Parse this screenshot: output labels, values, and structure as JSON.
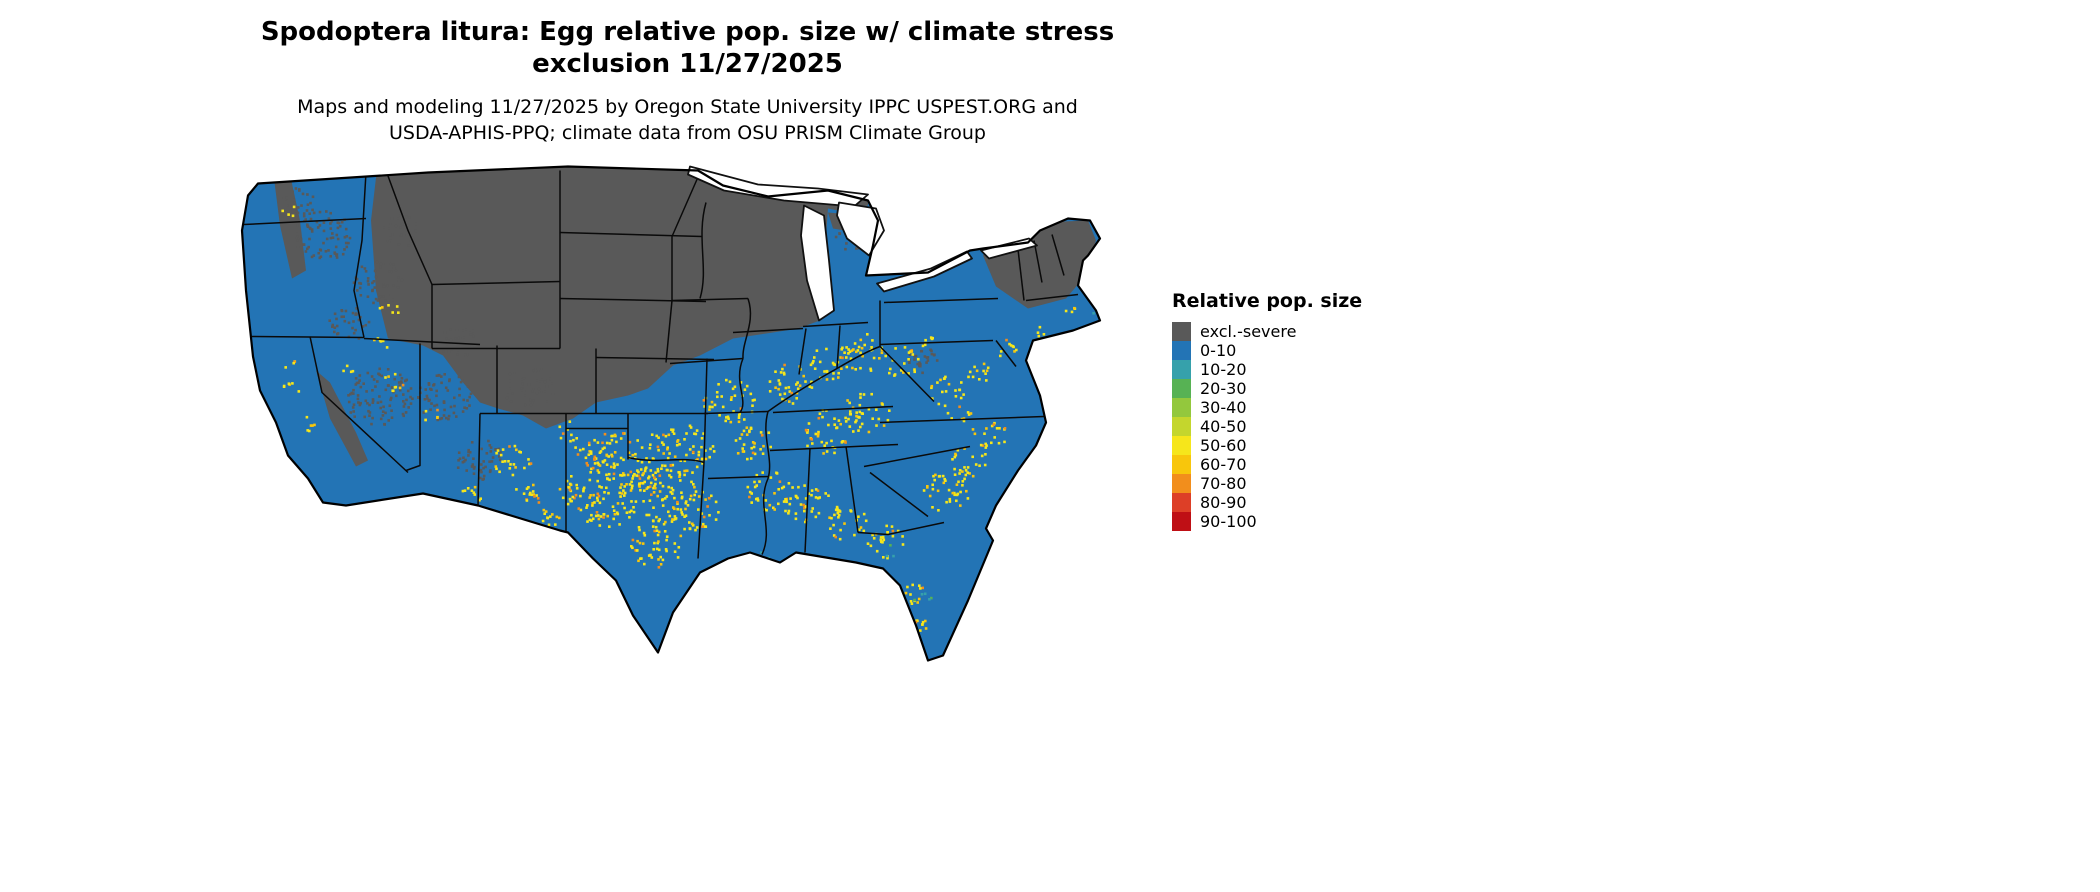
{
  "title": {
    "line1": "Spodoptera litura: Egg relative pop. size w/ climate stress",
    "line2": "exclusion 11/27/2025"
  },
  "subtitle": {
    "line1": "Maps and modeling 11/27/2025 by Oregon State University IPPC USPEST.ORG and",
    "line2": "USDA-APHIS-PPQ; climate data from OSU PRISM Climate Group"
  },
  "legend": {
    "title": "Relative pop. size",
    "items": [
      {
        "label": "excl.-severe",
        "color": "#595959"
      },
      {
        "label": "0-10",
        "color": "#2374b5"
      },
      {
        "label": "10-20",
        "color": "#36a1ab"
      },
      {
        "label": "20-30",
        "color": "#57b254"
      },
      {
        "label": "30-40",
        "color": "#93c83d"
      },
      {
        "label": "40-50",
        "color": "#c4d62d"
      },
      {
        "label": "50-60",
        "color": "#f6e61b"
      },
      {
        "label": "60-70",
        "color": "#f8c60c"
      },
      {
        "label": "70-80",
        "color": "#f28e1c"
      },
      {
        "label": "80-90",
        "color": "#dd3f27"
      },
      {
        "label": "90-100",
        "color": "#bf0f15"
      }
    ]
  },
  "map": {
    "background": "#ffffff",
    "base_color": "#2374b5",
    "excluded_color": "#595959",
    "outline_color": "#000000"
  }
}
